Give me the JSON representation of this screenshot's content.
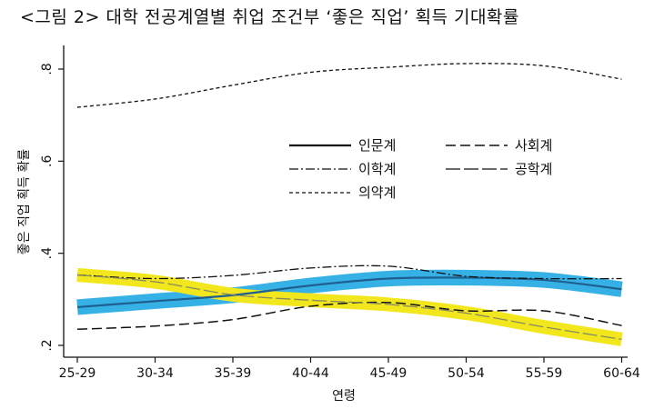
{
  "figure_title": "<그림 2> 대학 전공계열별 취업 조건부 ‘좋은 직업’ 획득 기대확률",
  "chart_data": {
    "type": "line",
    "title": "<그림 2> 대학 전공계열별 취업 조건부 ‘좋은 직업’ 획득 기대확률",
    "xlabel": "연령",
    "ylabel": "좋은 직업 획득 확률",
    "categories": [
      "25-29",
      "30-34",
      "35-39",
      "40-44",
      "45-49",
      "50-54",
      "55-59",
      "60-64"
    ],
    "y_ticks": [
      ".2",
      ".4",
      ".6",
      ".8"
    ],
    "ylim": [
      0.19,
      0.84
    ],
    "legend_position": "top-right",
    "series": [
      {
        "name": "인문계",
        "style": "solid",
        "color": "#1f5f8f",
        "band_color": "#35b1e6",
        "band_halfwidth": 0.017,
        "values": [
          0.283,
          0.296,
          0.309,
          0.33,
          0.345,
          0.347,
          0.342,
          0.322
        ]
      },
      {
        "name": "사회계",
        "style": "long-dash",
        "color": "#111111",
        "values": [
          0.235,
          0.242,
          0.256,
          0.285,
          0.293,
          0.275,
          0.275,
          0.243
        ]
      },
      {
        "name": "이학계",
        "style": "dash-dot",
        "color": "#111111",
        "values": [
          0.353,
          0.345,
          0.352,
          0.368,
          0.372,
          0.35,
          0.345,
          0.345
        ]
      },
      {
        "name": "공학계",
        "style": "long-dash-2",
        "color": "#8a8a60",
        "band_color": "#f2e61c",
        "band_halfwidth": 0.015,
        "values": [
          0.353,
          0.338,
          0.31,
          0.298,
          0.289,
          0.27,
          0.24,
          0.213
        ]
      },
      {
        "name": "의약계",
        "style": "short-dash",
        "color": "#111111",
        "values": [
          0.717,
          0.735,
          0.765,
          0.793,
          0.804,
          0.812,
          0.807,
          0.778
        ]
      }
    ]
  }
}
